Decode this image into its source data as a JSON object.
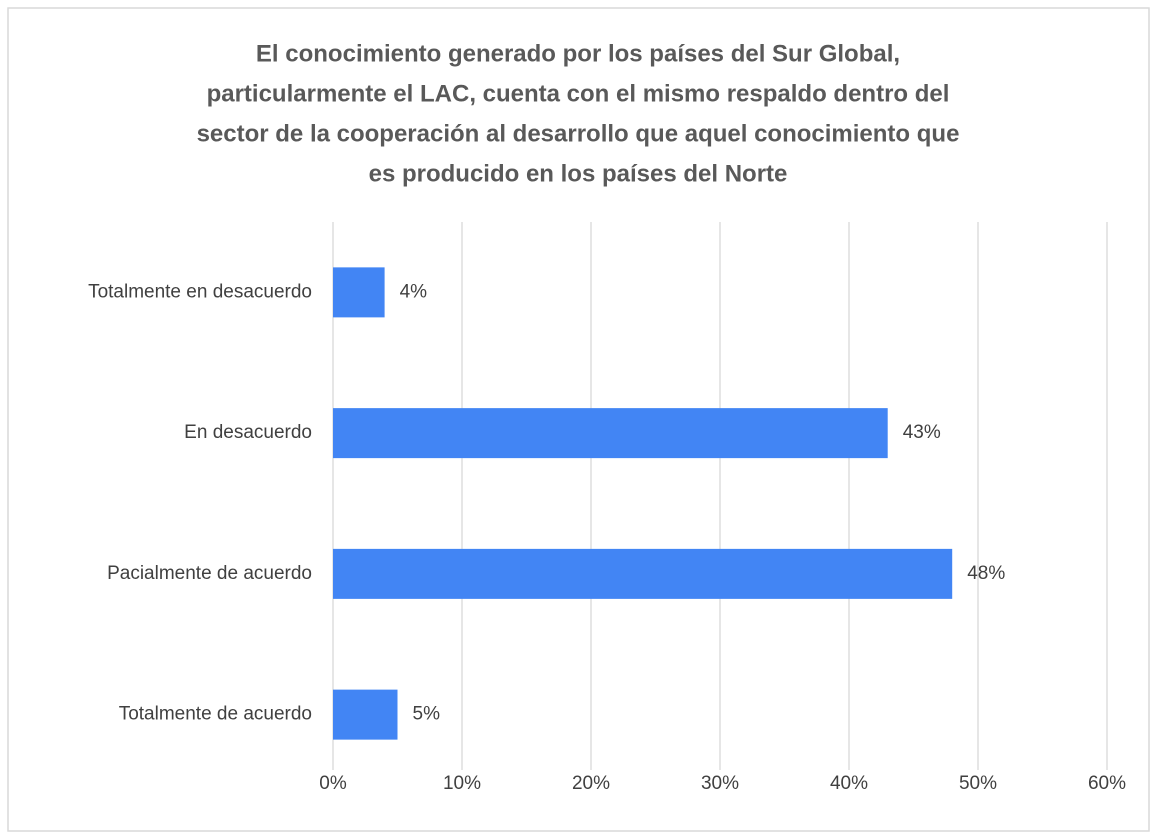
{
  "chart_data": {
    "type": "hbar",
    "title": [
      "El conocimiento generado por los países del Sur Global,",
      "particularmente el LAC, cuenta con el mismo respaldo dentro del",
      "sector de la cooperación al desarrollo que aquel conocimiento que",
      "es producido en los países del Norte"
    ],
    "categories": [
      "Totalmente en desacuerdo",
      "En desacuerdo",
      "Pacialmente de acuerdo",
      "Totalmente de acuerdo"
    ],
    "values": [
      4,
      43,
      48,
      5
    ],
    "value_labels": [
      "4%",
      "43%",
      "48%",
      "5%"
    ],
    "color": "#4285f4",
    "xlim": [
      0,
      60
    ],
    "xticks": [
      {
        "value": 0,
        "label": "0%"
      },
      {
        "value": 10,
        "label": "10%"
      },
      {
        "value": 20,
        "label": "20%"
      },
      {
        "value": 30,
        "label": "30%"
      },
      {
        "value": 40,
        "label": "40%"
      },
      {
        "value": 50,
        "label": "50%"
      },
      {
        "value": 60,
        "label": "60%"
      }
    ],
    "grid": true
  }
}
